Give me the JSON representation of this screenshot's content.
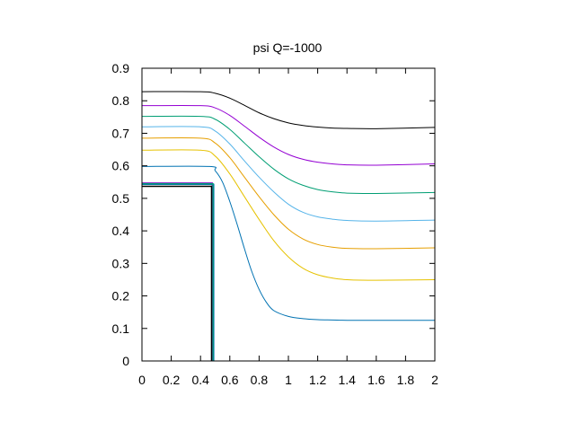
{
  "chart_data": {
    "type": "line",
    "title": "psi Q=-1000",
    "xlabel": "",
    "ylabel": "",
    "xlim": [
      0,
      2
    ],
    "ylim": [
      0,
      0.9
    ],
    "xticks": [
      0,
      0.2,
      0.4,
      0.6,
      0.8,
      1,
      1.2,
      1.4,
      1.6,
      1.8,
      2
    ],
    "xtick_labels": [
      "0",
      "0.2",
      "0.4",
      "0.6",
      "0.8",
      "1",
      "1.2",
      "1.4",
      "1.6",
      "1.8",
      "2"
    ],
    "yticks": [
      0,
      0.1,
      0.2,
      0.3,
      0.4,
      0.5,
      0.6,
      0.7,
      0.8,
      0.9
    ],
    "ytick_labels": [
      "0",
      "0.1",
      "0.2",
      "0.3",
      "0.4",
      "0.5",
      "0.6",
      "0.7",
      "0.8",
      "0.9"
    ],
    "grid": false,
    "legend": false,
    "series": [
      {
        "color": "#0072b2",
        "x": [
          0,
          0.46,
          0.5,
          0.55,
          0.6,
          0.65,
          0.7,
          0.75,
          0.8,
          0.85,
          0.9,
          1.0,
          1.1,
          1.2,
          1.3,
          1.4,
          1.6,
          2.0
        ],
        "y": [
          0.598,
          0.598,
          0.585,
          0.55,
          0.49,
          0.42,
          0.345,
          0.275,
          0.22,
          0.18,
          0.155,
          0.137,
          0.13,
          0.127,
          0.126,
          0.125,
          0.125,
          0.125
        ]
      },
      {
        "color": "#e6c200",
        "x": [
          0,
          0.4,
          0.5,
          0.6,
          0.7,
          0.8,
          0.9,
          1.0,
          1.1,
          1.2,
          1.3,
          1.4,
          1.6,
          2.0
        ],
        "y": [
          0.648,
          0.648,
          0.63,
          0.575,
          0.505,
          0.435,
          0.37,
          0.32,
          0.285,
          0.265,
          0.255,
          0.25,
          0.248,
          0.25
        ]
      },
      {
        "color": "#e69f00",
        "x": [
          0,
          0.4,
          0.5,
          0.6,
          0.7,
          0.8,
          0.9,
          1.0,
          1.1,
          1.2,
          1.3,
          1.4,
          1.6,
          2.0
        ],
        "y": [
          0.685,
          0.685,
          0.67,
          0.625,
          0.565,
          0.505,
          0.45,
          0.405,
          0.375,
          0.358,
          0.35,
          0.346,
          0.345,
          0.348
        ]
      },
      {
        "color": "#56b4e9",
        "x": [
          0,
          0.4,
          0.5,
          0.6,
          0.7,
          0.8,
          0.9,
          1.0,
          1.1,
          1.2,
          1.3,
          1.4,
          1.6,
          2.0
        ],
        "y": [
          0.72,
          0.72,
          0.707,
          0.667,
          0.615,
          0.565,
          0.52,
          0.482,
          0.457,
          0.443,
          0.436,
          0.432,
          0.43,
          0.433
        ]
      },
      {
        "color": "#009e73",
        "x": [
          0,
          0.4,
          0.5,
          0.6,
          0.7,
          0.8,
          0.9,
          1.0,
          1.1,
          1.2,
          1.3,
          1.4,
          1.6,
          2.0
        ],
        "y": [
          0.752,
          0.752,
          0.743,
          0.712,
          0.67,
          0.628,
          0.59,
          0.56,
          0.54,
          0.527,
          0.52,
          0.516,
          0.515,
          0.518
        ]
      },
      {
        "color": "#9400d3",
        "x": [
          0,
          0.4,
          0.5,
          0.6,
          0.7,
          0.8,
          0.9,
          1.0,
          1.1,
          1.2,
          1.3,
          1.4,
          1.6,
          2.0
        ],
        "y": [
          0.785,
          0.785,
          0.778,
          0.755,
          0.722,
          0.688,
          0.658,
          0.635,
          0.62,
          0.611,
          0.606,
          0.603,
          0.602,
          0.606
        ]
      },
      {
        "color": "#000000",
        "x": [
          0,
          0.4,
          0.5,
          0.6,
          0.7,
          0.8,
          0.9,
          1.0,
          1.1,
          1.2,
          1.3,
          1.4,
          1.6,
          2.0
        ],
        "y": [
          0.828,
          0.828,
          0.823,
          0.808,
          0.786,
          0.763,
          0.745,
          0.732,
          0.724,
          0.719,
          0.716,
          0.715,
          0.714,
          0.718
        ]
      }
    ],
    "step_lines": [
      {
        "color": "#9400d3",
        "x": [
          0,
          0.48,
          0.48
        ],
        "y": [
          0.547,
          0.547,
          0
        ]
      },
      {
        "color": "#0072b2",
        "x": [
          0,
          0.49,
          0.49
        ],
        "y": [
          0.543,
          0.543,
          0
        ]
      },
      {
        "color": "#009e73",
        "x": [
          0,
          0.485,
          0.485
        ],
        "y": [
          0.545,
          0.545,
          0
        ]
      },
      {
        "color": "#000000",
        "x": [
          0,
          0.475,
          0.475
        ],
        "y": [
          0.537,
          0.537,
          0
        ]
      }
    ]
  }
}
